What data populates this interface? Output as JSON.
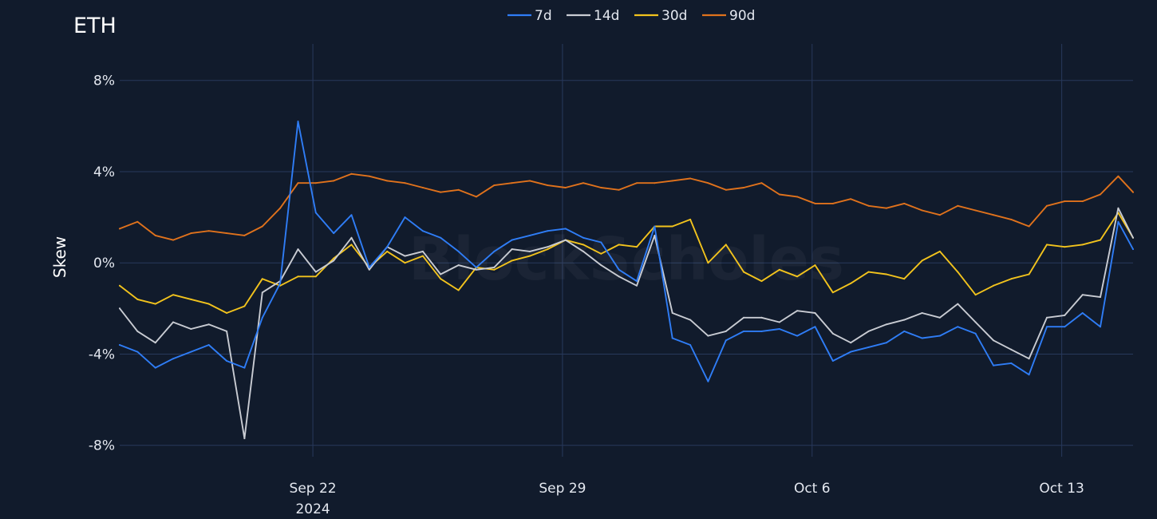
{
  "chart_data": {
    "type": "line",
    "title": "ETH",
    "ylabel": "Skew",
    "xlabel": "",
    "watermark": "BlockScholes",
    "legend_position": "top-center",
    "grid": true,
    "x_range": [
      "2024-09-16T14:00",
      "2024-10-15T00:00"
    ],
    "ylim": [
      -8.5,
      9.6
    ],
    "y_ticks": [
      {
        "value": -8,
        "label": "-8%"
      },
      {
        "value": -4,
        "label": "-4%"
      },
      {
        "value": 0,
        "label": "0%"
      },
      {
        "value": 4,
        "label": "4%"
      },
      {
        "value": 8,
        "label": "8%"
      }
    ],
    "x_ticks": [
      {
        "date": "2024-09-22",
        "label": "Sep 22",
        "sublabel": "2024"
      },
      {
        "date": "2024-09-29",
        "label": "Sep 29",
        "sublabel": ""
      },
      {
        "date": "2024-10-06",
        "label": "Oct 6",
        "sublabel": ""
      },
      {
        "date": "2024-10-13",
        "label": "Oct 13",
        "sublabel": ""
      }
    ],
    "x": [
      "2024-09-16T14:00",
      "2024-09-17T02:00",
      "2024-09-17T14:00",
      "2024-09-18T02:00",
      "2024-09-18T14:00",
      "2024-09-19T02:00",
      "2024-09-19T14:00",
      "2024-09-20T02:00",
      "2024-09-20T14:00",
      "2024-09-21T02:00",
      "2024-09-21T14:00",
      "2024-09-22T02:00",
      "2024-09-22T14:00",
      "2024-09-23T02:00",
      "2024-09-23T14:00",
      "2024-09-24T02:00",
      "2024-09-24T14:00",
      "2024-09-25T02:00",
      "2024-09-25T14:00",
      "2024-09-26T02:00",
      "2024-09-26T14:00",
      "2024-09-27T02:00",
      "2024-09-27T14:00",
      "2024-09-28T02:00",
      "2024-09-28T14:00",
      "2024-09-29T02:00",
      "2024-09-29T14:00",
      "2024-09-30T02:00",
      "2024-09-30T14:00",
      "2024-10-01T02:00",
      "2024-10-01T14:00",
      "2024-10-02T02:00",
      "2024-10-02T14:00",
      "2024-10-03T02:00",
      "2024-10-03T14:00",
      "2024-10-04T02:00",
      "2024-10-04T14:00",
      "2024-10-05T02:00",
      "2024-10-05T14:00",
      "2024-10-06T02:00",
      "2024-10-06T14:00",
      "2024-10-07T02:00",
      "2024-10-07T14:00",
      "2024-10-08T02:00",
      "2024-10-08T14:00",
      "2024-10-09T02:00",
      "2024-10-09T14:00",
      "2024-10-10T02:00",
      "2024-10-10T14:00",
      "2024-10-11T02:00",
      "2024-10-11T14:00",
      "2024-10-12T02:00",
      "2024-10-12T14:00",
      "2024-10-13T02:00",
      "2024-10-13T14:00",
      "2024-10-14T02:00",
      "2024-10-14T14:00",
      "2024-10-15T00:00"
    ],
    "series": [
      {
        "name": "7d",
        "color": "#2f7df6",
        "values": [
          -3.6,
          -3.9,
          -4.6,
          -4.2,
          -3.9,
          -3.6,
          -4.3,
          -4.6,
          -2.4,
          -0.9,
          6.2,
          2.2,
          1.3,
          2.1,
          -0.2,
          0.7,
          2.0,
          1.4,
          1.1,
          0.5,
          -0.2,
          0.5,
          1.0,
          1.2,
          1.4,
          1.5,
          1.1,
          0.9,
          -0.3,
          -0.8,
          1.6,
          -3.3,
          -3.6,
          -5.2,
          -3.4,
          -3.0,
          -3.0,
          -2.9,
          -3.2,
          -2.8,
          -4.3,
          -3.9,
          -3.7,
          -3.5,
          -3.0,
          -3.3,
          -3.2,
          -2.8,
          -3.1,
          -4.5,
          -4.4,
          -4.9,
          -2.8,
          -2.8,
          -2.2,
          -2.8,
          1.8,
          0.6
        ]
      },
      {
        "name": "14d",
        "color": "#c9ccd3",
        "values": [
          -2.0,
          -3.0,
          -3.5,
          -2.6,
          -2.9,
          -2.7,
          -3.0,
          -7.7,
          -1.3,
          -0.8,
          0.6,
          -0.4,
          0.1,
          1.1,
          -0.3,
          0.7,
          0.3,
          0.5,
          -0.5,
          -0.1,
          -0.3,
          -0.2,
          0.6,
          0.5,
          0.7,
          1.0,
          0.5,
          -0.1,
          -0.6,
          -1.0,
          1.2,
          -2.2,
          -2.5,
          -3.2,
          -3.0,
          -2.4,
          -2.4,
          -2.6,
          -2.1,
          -2.2,
          -3.1,
          -3.5,
          -3.0,
          -2.7,
          -2.5,
          -2.2,
          -2.4,
          -1.8,
          -2.6,
          -3.4,
          -3.8,
          -4.2,
          -2.4,
          -2.3,
          -1.4,
          -1.5,
          2.4,
          1.1
        ]
      },
      {
        "name": "30d",
        "color": "#f2c31d",
        "values": [
          -1.0,
          -1.6,
          -1.8,
          -1.4,
          -1.6,
          -1.8,
          -2.2,
          -1.9,
          -0.7,
          -1.0,
          -0.6,
          -0.6,
          0.2,
          0.8,
          -0.2,
          0.5,
          0.0,
          0.3,
          -0.7,
          -1.2,
          -0.2,
          -0.3,
          0.1,
          0.3,
          0.6,
          1.0,
          0.8,
          0.4,
          0.8,
          0.7,
          1.6,
          1.6,
          1.9,
          0.0,
          0.8,
          -0.4,
          -0.8,
          -0.3,
          -0.6,
          -0.1,
          -1.3,
          -0.9,
          -0.4,
          -0.5,
          -0.7,
          0.1,
          0.5,
          -0.4,
          -1.4,
          -1.0,
          -0.7,
          -0.5,
          0.8,
          0.7,
          0.8,
          1.0,
          2.2,
          1.1
        ]
      },
      {
        "name": "90d",
        "color": "#e0721c",
        "values": [
          1.5,
          1.8,
          1.2,
          1.0,
          1.3,
          1.4,
          1.3,
          1.2,
          1.6,
          2.4,
          3.5,
          3.5,
          3.6,
          3.9,
          3.8,
          3.6,
          3.5,
          3.3,
          3.1,
          3.2,
          2.9,
          3.4,
          3.5,
          3.6,
          3.4,
          3.3,
          3.5,
          3.3,
          3.2,
          3.5,
          3.5,
          3.6,
          3.7,
          3.5,
          3.2,
          3.3,
          3.5,
          3.0,
          2.9,
          2.6,
          2.6,
          2.8,
          2.5,
          2.4,
          2.6,
          2.3,
          2.1,
          2.5,
          2.3,
          2.1,
          1.9,
          1.6,
          2.5,
          2.7,
          2.7,
          3.0,
          3.8,
          3.1
        ]
      }
    ]
  }
}
